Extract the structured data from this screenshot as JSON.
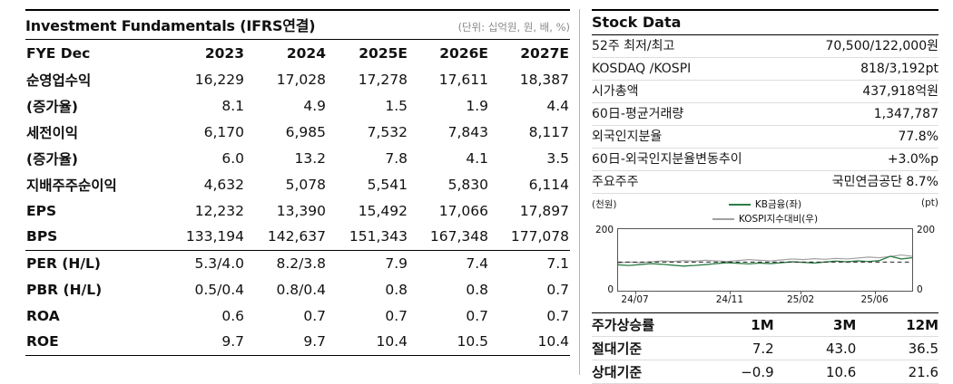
{
  "fundamentals": {
    "title": "Investment Fundamentals (IFRS연결)",
    "unit_note": "(단위: 십억원, 원, 배, %)",
    "header": [
      "FYE Dec",
      "2023",
      "2024",
      "2025E",
      "2026E",
      "2027E"
    ],
    "rows": [
      {
        "label": "순영업수익",
        "values": [
          "16,229",
          "17,028",
          "17,278",
          "17,611",
          "18,387"
        ]
      },
      {
        "label": "(증가율)",
        "values": [
          "8.1",
          "4.9",
          "1.5",
          "1.9",
          "4.4"
        ]
      },
      {
        "label": "세전이익",
        "values": [
          "6,170",
          "6,985",
          "7,532",
          "7,843",
          "8,117"
        ]
      },
      {
        "label": "(증가율)",
        "values": [
          "6.0",
          "13.2",
          "7.8",
          "4.1",
          "3.5"
        ]
      },
      {
        "label": "지배주주순이익",
        "values": [
          "4,632",
          "5,078",
          "5,541",
          "5,830",
          "6,114"
        ]
      },
      {
        "label": "EPS",
        "values": [
          "12,232",
          "13,390",
          "15,492",
          "17,066",
          "17,897"
        ]
      },
      {
        "label": "BPS",
        "values": [
          "133,194",
          "142,637",
          "151,343",
          "167,348",
          "177,078"
        ]
      },
      {
        "label": "PER (H/L)",
        "values": [
          "5.3/4.0",
          "8.2/3.8",
          "7.9",
          "7.4",
          "7.1"
        ]
      },
      {
        "label": "PBR (H/L)",
        "values": [
          "0.5/0.4",
          "0.8/0.4",
          "0.8",
          "0.8",
          "0.7"
        ]
      },
      {
        "label": "ROA",
        "values": [
          "0.6",
          "0.7",
          "0.7",
          "0.7",
          "0.7"
        ]
      },
      {
        "label": "ROE",
        "values": [
          "9.7",
          "9.7",
          "10.4",
          "10.5",
          "10.4"
        ]
      }
    ]
  },
  "stock_data": {
    "title": "Stock Data",
    "rows": [
      {
        "label": "52주 최저/최고",
        "value": "70,500/122,000원"
      },
      {
        "label": "KOSDAQ /KOSPI",
        "value": "818/3,192pt"
      },
      {
        "label": "시가총액",
        "value": "437,918억원"
      },
      {
        "label": "60日-평균거래량",
        "value": "1,347,787"
      },
      {
        "label": "외국인지분율",
        "value": "77.8%"
      },
      {
        "label": "60日-외국인지분율변동추이",
        "value": "+3.0%p"
      },
      {
        "label": "주요주주",
        "value": "국민연금공단 8.7%"
      }
    ]
  },
  "chart_data": {
    "type": "line",
    "left_axis_label": "(천원)",
    "right_axis_label": "(pt)",
    "axis_ticks": [
      "200",
      "0"
    ],
    "ylim": [
      0,
      200
    ],
    "x_ticks": [
      "24/07",
      "24/11",
      "25/02",
      "25/06"
    ],
    "series": [
      {
        "name": "KB금융(좌)",
        "color": "#2e7d46",
        "values": [
          84,
          82,
          85,
          88,
          86,
          83,
          80,
          82,
          85,
          88,
          91,
          89,
          87,
          90,
          88,
          91,
          94,
          92,
          90,
          93,
          96,
          94,
          97,
          95,
          98,
          112,
          103,
          107
        ]
      },
      {
        "name": "KOSPI지수대비(우)",
        "color": "#a0a0a0",
        "values": [
          90,
          93,
          91,
          94,
          97,
          95,
          98,
          96,
          99,
          97,
          95,
          98,
          101,
          99,
          97,
          100,
          103,
          101,
          104,
          102,
          105,
          103,
          106,
          109,
          107,
          111,
          116,
          112
        ]
      }
    ],
    "reference_line": {
      "value": 93,
      "color": "#222222",
      "style": "dashed"
    }
  },
  "price_returns": {
    "header": [
      "주가상승률",
      "1M",
      "3M",
      "12M"
    ],
    "rows": [
      {
        "label": "절대기준",
        "values": [
          "7.2",
          "43.0",
          "36.5"
        ]
      },
      {
        "label": "상대기준",
        "values": [
          "−0.9",
          "10.6",
          "21.6"
        ]
      }
    ]
  }
}
